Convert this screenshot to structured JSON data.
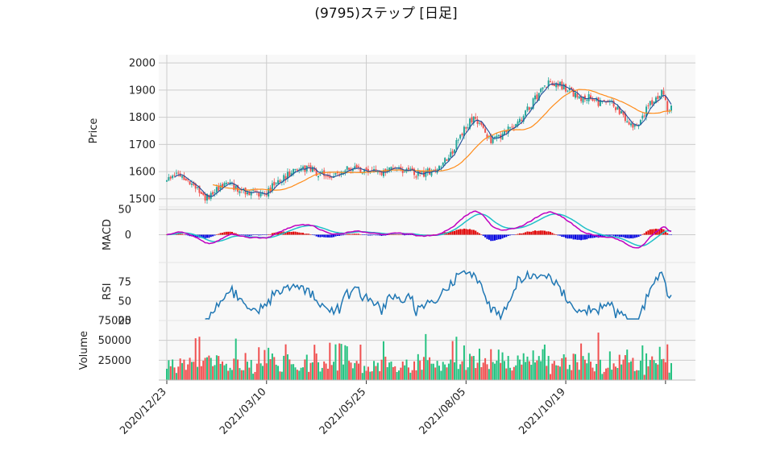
{
  "chart_data": {
    "type": "candlestick",
    "title": "(9795)ステップ [日足]",
    "x_tick_labels": [
      "2020/12/23",
      "2021/03/10",
      "2021/05/25",
      "2021/08/05",
      "2021/10/19"
    ],
    "colors": {
      "up": "#26a69a",
      "down": "#ef5350",
      "ma_short": "#1f4e9c",
      "ma_long": "#ff8c1a",
      "macd": "#c000c0",
      "signal": "#20c0c8",
      "hist_pos": "#e00000",
      "hist_neg": "#0000e0",
      "rsi": "#1f77b4",
      "vol_up": "#26c281",
      "vol_down": "#f05050",
      "grid": "#cccccc",
      "panel_bg": "#f8f8f8"
    },
    "panels": [
      {
        "name": "price",
        "ylabel": "Price",
        "ylim": [
          1470,
          2030
        ],
        "yticks": [
          "1500",
          "1600",
          "1700",
          "1800",
          "1900",
          "2000"
        ],
        "anchors": [
          [
            0,
            1580
          ],
          [
            5,
            1590
          ],
          [
            10,
            1570
          ],
          [
            15,
            1540
          ],
          [
            20,
            1500
          ],
          [
            25,
            1530
          ],
          [
            30,
            1555
          ],
          [
            35,
            1545
          ],
          [
            40,
            1530
          ],
          [
            45,
            1520
          ],
          [
            50,
            1515
          ],
          [
            55,
            1545
          ],
          [
            60,
            1575
          ],
          [
            65,
            1595
          ],
          [
            70,
            1615
          ],
          [
            75,
            1610
          ],
          [
            80,
            1590
          ],
          [
            85,
            1580
          ],
          [
            90,
            1595
          ],
          [
            95,
            1610
          ],
          [
            100,
            1605
          ],
          [
            105,
            1600
          ],
          [
            110,
            1595
          ],
          [
            115,
            1600
          ],
          [
            120,
            1615
          ],
          [
            125,
            1605
          ],
          [
            130,
            1590
          ],
          [
            135,
            1595
          ],
          [
            140,
            1610
          ],
          [
            145,
            1640
          ],
          [
            150,
            1690
          ],
          [
            155,
            1760
          ],
          [
            160,
            1800
          ],
          [
            165,
            1750
          ],
          [
            170,
            1710
          ],
          [
            175,
            1740
          ],
          [
            180,
            1760
          ],
          [
            185,
            1790
          ],
          [
            190,
            1850
          ],
          [
            195,
            1900
          ],
          [
            200,
            1930
          ],
          [
            205,
            1920
          ],
          [
            210,
            1895
          ],
          [
            215,
            1870
          ],
          [
            220,
            1880
          ],
          [
            225,
            1850
          ],
          [
            230,
            1860
          ],
          [
            235,
            1830
          ],
          [
            240,
            1790
          ],
          [
            245,
            1760
          ],
          [
            250,
            1830
          ],
          [
            255,
            1870
          ],
          [
            258,
            1900
          ],
          [
            261,
            1830
          ],
          [
            263,
            1840
          ]
        ]
      },
      {
        "name": "macd",
        "ylabel": "MACD",
        "yticks": [
          "0",
          "50"
        ],
        "ylim": [
          -55,
          55
        ]
      },
      {
        "name": "rsi",
        "ylabel": "RSI",
        "yticks": [
          "25",
          "50",
          "75"
        ],
        "ylim": [
          25,
          100
        ]
      },
      {
        "name": "volume",
        "ylabel": "Volume",
        "yticks": [
          "25000",
          "50000",
          "75000"
        ],
        "ylim": [
          0,
          75000
        ]
      }
    ]
  }
}
